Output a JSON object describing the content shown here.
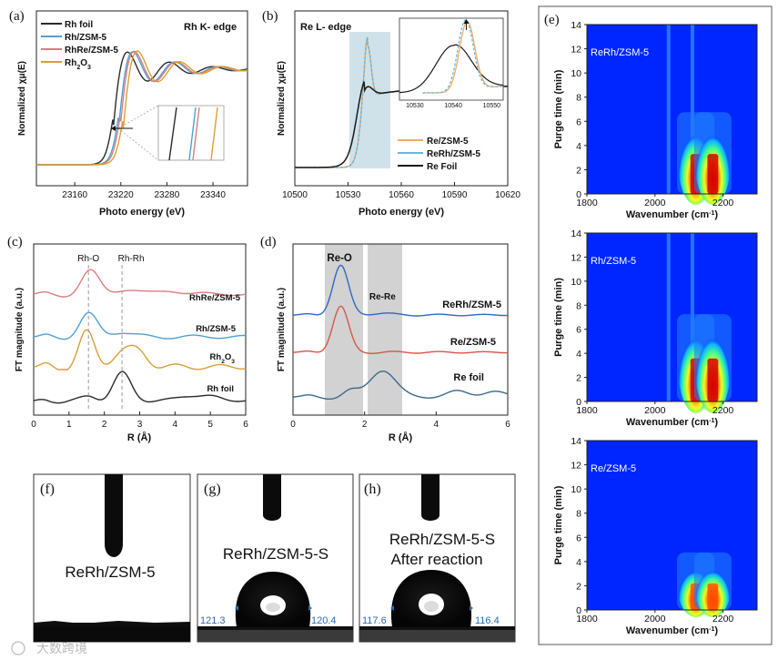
{
  "colors": {
    "rh_foil": "#2b2b2b",
    "rh_zsm5": "#4f9fd9",
    "rhre_zsm5": "#d77f7f",
    "rh2o3": "#d9a032",
    "re_zsm5": "#f0ad62",
    "rerh_zsm5": "#67b7e4",
    "re_foil": "#1a1a1a",
    "exafs_rerh": "#2c6bc4",
    "exafs_re": "#d8554b",
    "exafs_refoil": "#3a6a8c",
    "band": "#cfe2ea",
    "shade": "#cfcfcf"
  },
  "panels": {
    "a": {
      "letter": "(a)",
      "title": "Rh K- edge"
    },
    "b": {
      "letter": "(b)",
      "title": "Re L- edge"
    },
    "c": {
      "letter": "(c)"
    },
    "d": {
      "letter": "(d)"
    },
    "e": {
      "letter": "(e)"
    },
    "f": {
      "letter": "(f)",
      "label": "ReRh/ZSM-5"
    },
    "g": {
      "letter": "(g)",
      "label": "ReRh/ZSM-5-S",
      "angle_left": "121.3",
      "angle_right": "120.4"
    },
    "h": {
      "letter": "(h)",
      "label_line1": "ReRh/ZSM-5-S",
      "label_line2": "After reaction",
      "angle_left": "117.6",
      "angle_right": "116.4"
    }
  },
  "watermark": "大数跨境",
  "chart_data": [
    {
      "id": "a",
      "type": "line",
      "title": "Rh K- edge",
      "xlabel": "Photo energy (eV)",
      "ylabel": "Normalized χμ(E)",
      "xlim": [
        23110,
        23385
      ],
      "xticks": [
        23160,
        23220,
        23280,
        23340
      ],
      "legend": "top-left",
      "series": [
        {
          "name": "Rh foil",
          "edge": 23210,
          "color_key": "rh_foil"
        },
        {
          "name": "Rh/ZSM-5",
          "edge": 23217,
          "color_key": "rh_zsm5"
        },
        {
          "name": "RhRe/ZSM-5",
          "edge": 23219,
          "color_key": "rhre_zsm5"
        },
        {
          "name": "Rh2O3",
          "edge": 23223,
          "color_key": "rh2o3"
        }
      ]
    },
    {
      "id": "b",
      "type": "line",
      "title": "Re L- edge",
      "xlabel": "Photo energy (eV)",
      "ylabel": "Normalized χμ(E)",
      "xlim": [
        10500,
        10620
      ],
      "xticks": [
        10500,
        10530,
        10560,
        10590,
        10620
      ],
      "legend": "bottom-right",
      "inset_xticks": [
        10530,
        10540,
        10550
      ],
      "series": [
        {
          "name": "Re/ZSM-5",
          "peak_x": 10541,
          "color_key": "re_zsm5"
        },
        {
          "name": "ReRh/ZSM-5",
          "peak_x": 10541,
          "color_key": "rerh_zsm5"
        },
        {
          "name": "Re Foil",
          "peak_x": 10539,
          "color_key": "re_foil"
        }
      ]
    },
    {
      "id": "c",
      "type": "line",
      "xlabel": "R (Å)",
      "ylabel": "FT magnitude (a.u.)",
      "xlim": [
        0,
        6
      ],
      "xticks": [
        0,
        1,
        2,
        3,
        4,
        5,
        6
      ],
      "annotations": [
        {
          "text": "Rh-O",
          "x": 1.55
        },
        {
          "text": "Rh-Rh",
          "x": 2.5
        }
      ],
      "series": [
        {
          "name": "RhRe/ZSM-5",
          "color_key": "rhre_zsm5"
        },
        {
          "name": "Rh/ZSM-5",
          "color_key": "rh_zsm5"
        },
        {
          "name": "Rh2O3",
          "color_key": "rh2o3"
        },
        {
          "name": "Rh foil",
          "color_key": "rh_foil"
        }
      ]
    },
    {
      "id": "d",
      "type": "line",
      "xlabel": "R (Å)",
      "ylabel": "FT magnitude (a.u.)",
      "xlim": [
        0,
        6
      ],
      "xticks": [
        0,
        2,
        4,
        6
      ],
      "annotations": [
        {
          "text": "Re-O",
          "x": 1.3
        },
        {
          "text": "Re-Re",
          "x": 2.5
        }
      ],
      "series": [
        {
          "name": "ReRh/ZSM-5",
          "color_key": "exafs_rerh"
        },
        {
          "name": "Re/ZSM-5",
          "color_key": "exafs_re"
        },
        {
          "name": "Re foil",
          "color_key": "exafs_refoil"
        }
      ]
    },
    {
      "id": "e",
      "type": "heatmap",
      "xlabel": "Wavenumber (cm-1)",
      "ylabel": "Purge time (min)",
      "xlim": [
        1800,
        2300
      ],
      "ylim": [
        0,
        14
      ],
      "xticks": [
        1800,
        2000,
        2200
      ],
      "yticks": [
        0,
        2,
        4,
        6,
        8,
        10,
        12,
        14
      ],
      "peaks": [
        2120,
        2170
      ],
      "maps": [
        {
          "name": "ReRh/ZSM-5",
          "top": 6
        },
        {
          "name": "Rh/ZSM-5",
          "top": 6.5
        },
        {
          "name": "Re/ZSM-5",
          "top": 4
        }
      ]
    }
  ]
}
